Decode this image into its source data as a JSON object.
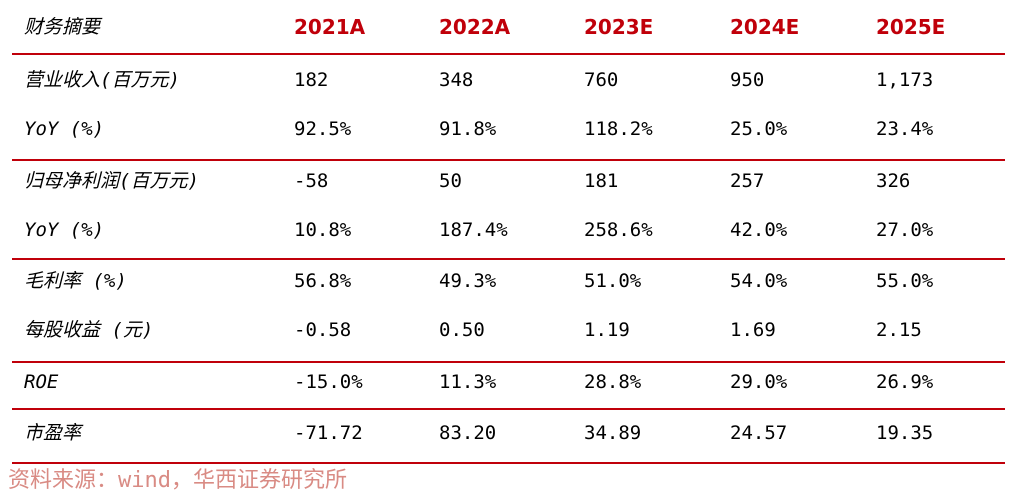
{
  "header": [
    "财务摘要",
    "2021A",
    "2022A",
    "2023E",
    "2024E",
    "2025E"
  ],
  "rows": [
    [
      "营业收入(百万元)",
      "182",
      "348",
      "760",
      "950",
      "1,173"
    ],
    [
      "YoY (%)",
      "92.5%",
      "91.8%",
      "118.2%",
      "25.0%",
      "23.4%"
    ],
    [
      "归母净利润(百万元)",
      "-58",
      "50",
      "181",
      "257",
      "326"
    ],
    [
      "YoY (%)",
      "10.8%",
      "187.4%",
      "258.6%",
      "42.0%",
      "27.0%"
    ],
    [
      "毛利率 (%)",
      "56.8%",
      "49.3%",
      "51.0%",
      "54.0%",
      "55.0%"
    ],
    [
      "每股收益 (元)",
      "-0.58",
      "0.50",
      "1.19",
      "1.69",
      "2.15"
    ],
    [
      "ROE",
      "-15.0%",
      "11.3%",
      "28.8%",
      "29.0%",
      "26.9%"
    ],
    [
      "市盈率",
      "-71.72",
      "83.20",
      "34.89",
      "24.57",
      "19.35"
    ]
  ],
  "source": "资料来源：wind，华西证券研究所",
  "colors": {
    "accent": "#c0000a",
    "source_text": "#d98b84"
  }
}
